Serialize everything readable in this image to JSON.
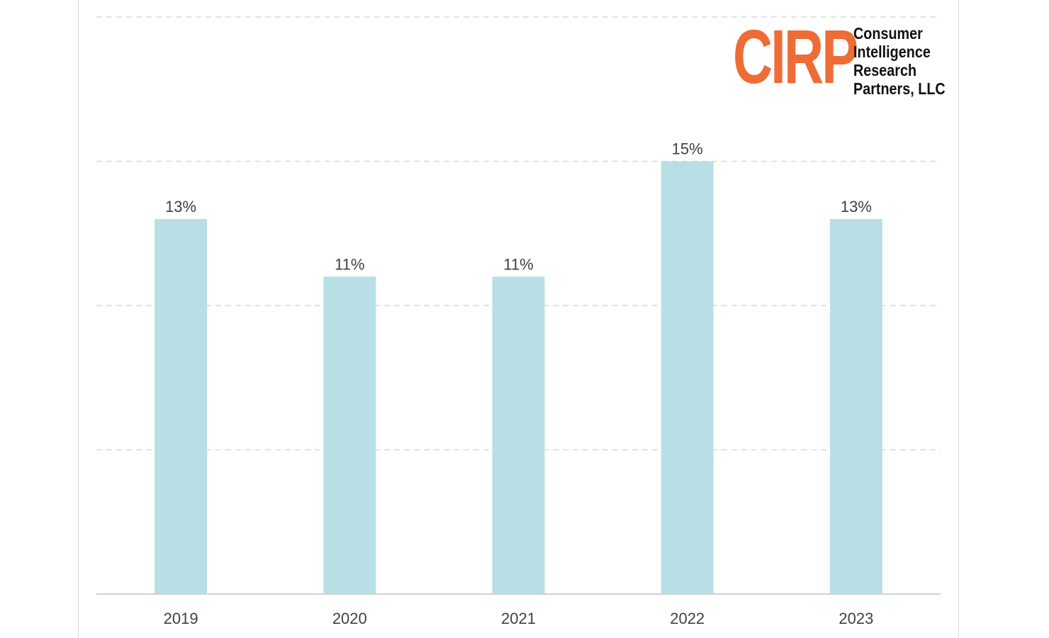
{
  "chart_data": {
    "type": "bar",
    "title": "",
    "xlabel": "",
    "ylabel": "",
    "categories": [
      "2019",
      "2020",
      "2021",
      "2022",
      "2023"
    ],
    "values": [
      13,
      11,
      11,
      15,
      13
    ],
    "value_labels": [
      "13%",
      "11%",
      "11%",
      "15%",
      "13%"
    ],
    "ylim": [
      0,
      20
    ],
    "y_grid_step": 5,
    "grid": true,
    "bar_color": "#b8dfe6",
    "legend": "none"
  },
  "logo": {
    "mark": "CIRP",
    "lines": [
      "Consumer",
      "Intelligence",
      "Research",
      "Partners, LLC"
    ],
    "mark_color": "#ee6c35"
  }
}
